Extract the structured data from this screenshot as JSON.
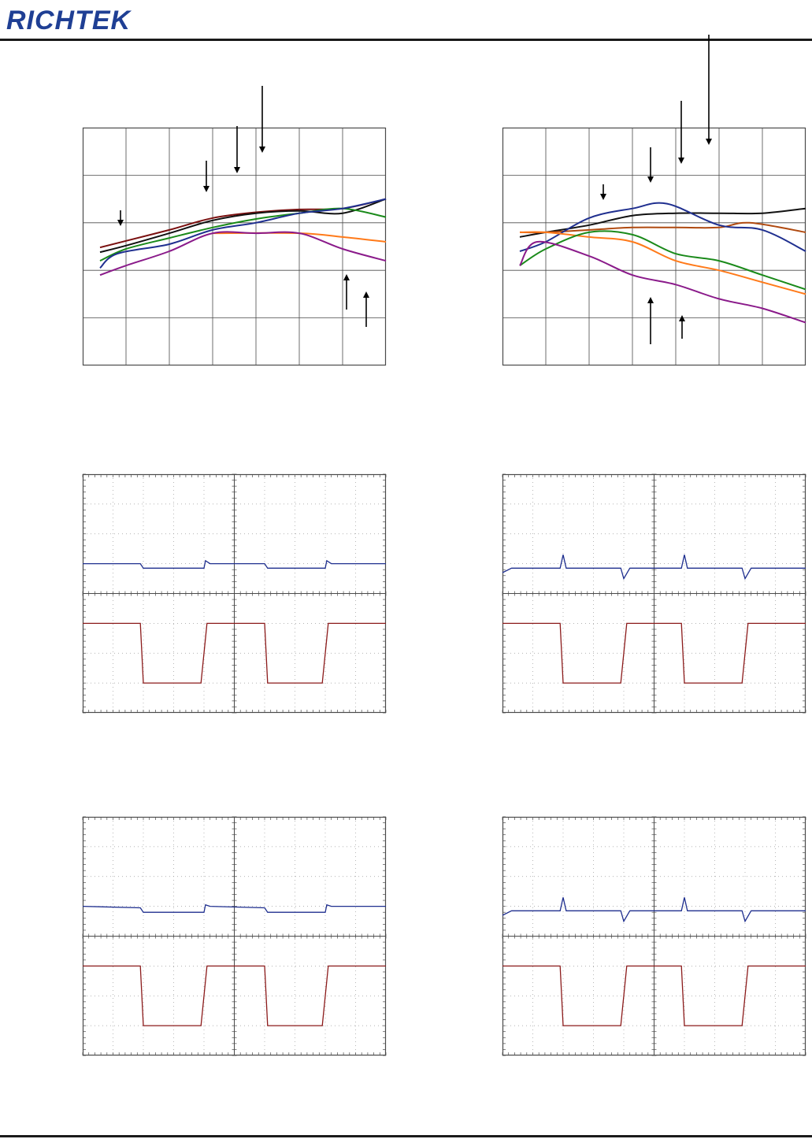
{
  "header": {
    "brand": "RICHTEK"
  },
  "colors": {
    "brand": "#1f3f94",
    "grid": "#4a4a4a",
    "ch_blue": "#1f2f8f",
    "ch_red": "#8b1a1a",
    "orange": "#ff7a1a",
    "green": "#1a8a1a",
    "darkred": "#7a1010",
    "black": "#111111",
    "purple": "#8a1a8a",
    "brown": "#b04a10"
  },
  "chart_data": [
    {
      "type": "line",
      "ylim": [
        0,
        5
      ],
      "xlim": [
        0,
        7
      ],
      "series": [
        {
          "color": "#7a1010",
          "values": [
            [
              0.4,
              2.48
            ],
            [
              1,
              2.62
            ],
            [
              2,
              2.85
            ],
            [
              3,
              3.1
            ],
            [
              4,
              3.22
            ],
            [
              5,
              3.28
            ],
            [
              6,
              3.3
            ],
            [
              7,
              3.5
            ]
          ]
        },
        {
          "color": "#111111",
          "values": [
            [
              0.4,
              2.38
            ],
            [
              1,
              2.52
            ],
            [
              2,
              2.78
            ],
            [
              3,
              3.05
            ],
            [
              4,
              3.2
            ],
            [
              5,
              3.25
            ],
            [
              6,
              3.2
            ],
            [
              7,
              3.5
            ]
          ]
        },
        {
          "color": "#1a8a1a",
          "values": [
            [
              0.4,
              2.2
            ],
            [
              1,
              2.45
            ],
            [
              2,
              2.68
            ],
            [
              3,
              2.9
            ],
            [
              4,
              3.08
            ],
            [
              5,
              3.2
            ],
            [
              6,
              3.3
            ],
            [
              7,
              3.12
            ]
          ]
        },
        {
          "color": "#1f2f8f",
          "values": [
            [
              0.4,
              2.05
            ],
            [
              0.8,
              2.35
            ],
            [
              2,
              2.55
            ],
            [
              3,
              2.85
            ],
            [
              4,
              3.0
            ],
            [
              5,
              3.2
            ],
            [
              6,
              3.3
            ],
            [
              7,
              3.5
            ]
          ]
        },
        {
          "color": "#ff7a1a",
          "values": [
            [
              3,
              2.78
            ],
            [
              5,
              2.78
            ],
            [
              6,
              2.7
            ],
            [
              7,
              2.6
            ]
          ]
        },
        {
          "color": "#8a1a8a",
          "values": [
            [
              0.4,
              1.9
            ],
            [
              1,
              2.1
            ],
            [
              2,
              2.4
            ],
            [
              3,
              2.78
            ],
            [
              4,
              2.78
            ],
            [
              5,
              2.78
            ],
            [
              6,
              2.45
            ],
            [
              7,
              2.2
            ]
          ]
        }
      ]
    },
    {
      "type": "line",
      "ylim": [
        0,
        5
      ],
      "xlim": [
        0,
        7
      ],
      "series": [
        {
          "color": "#111111",
          "values": [
            [
              0.4,
              2.7
            ],
            [
              1,
              2.8
            ],
            [
              2,
              2.95
            ],
            [
              3,
              3.15
            ],
            [
              4,
              3.2
            ],
            [
              5,
              3.2
            ],
            [
              6,
              3.2
            ],
            [
              7,
              3.3
            ]
          ]
        },
        {
          "color": "#b04a10",
          "values": [
            [
              0.4,
              2.8
            ],
            [
              1,
              2.8
            ],
            [
              2,
              2.85
            ],
            [
              3,
              2.9
            ],
            [
              4,
              2.9
            ],
            [
              5,
              2.9
            ],
            [
              5.7,
              3.0
            ],
            [
              7,
              2.8
            ]
          ]
        },
        {
          "color": "#1f2f8f",
          "values": [
            [
              0.4,
              2.4
            ],
            [
              1,
              2.6
            ],
            [
              2,
              3.1
            ],
            [
              3,
              3.3
            ],
            [
              3.8,
              3.4
            ],
            [
              5,
              2.95
            ],
            [
              6,
              2.85
            ],
            [
              7,
              2.4
            ]
          ]
        },
        {
          "color": "#ff7a1a",
          "values": [
            [
              0.4,
              2.8
            ],
            [
              1,
              2.8
            ],
            [
              2,
              2.7
            ],
            [
              3,
              2.6
            ],
            [
              4,
              2.2
            ],
            [
              5,
              2.0
            ],
            [
              6,
              1.75
            ],
            [
              7,
              1.5
            ]
          ]
        },
        {
          "color": "#1a8a1a",
          "values": [
            [
              0.4,
              2.1
            ],
            [
              1,
              2.45
            ],
            [
              2,
              2.8
            ],
            [
              3,
              2.75
            ],
            [
              4,
              2.35
            ],
            [
              5,
              2.2
            ],
            [
              6,
              1.9
            ],
            [
              7,
              1.6
            ]
          ]
        },
        {
          "color": "#8a1a8a",
          "values": [
            [
              0.4,
              2.1
            ],
            [
              0.8,
              2.6
            ],
            [
              2,
              2.3
            ],
            [
              3,
              1.9
            ],
            [
              4,
              1.7
            ],
            [
              5,
              1.4
            ],
            [
              6,
              1.2
            ],
            [
              7,
              0.9
            ]
          ]
        }
      ]
    },
    {
      "type": "line",
      "ylim": [
        0,
        8
      ],
      "xlim": [
        0,
        10
      ],
      "series": [
        {
          "color": "#1f2f8f",
          "values": [
            [
              0,
              5.0
            ],
            [
              1.9,
              5.0
            ],
            [
              2,
              4.85
            ],
            [
              4,
              4.85
            ],
            [
              4.05,
              5.1
            ],
            [
              4.2,
              5.0
            ],
            [
              6,
              5.0
            ],
            [
              6.1,
              4.85
            ],
            [
              8,
              4.85
            ],
            [
              8.05,
              5.1
            ],
            [
              8.2,
              5.0
            ],
            [
              10,
              5.0
            ]
          ]
        },
        {
          "color": "#8b1a1a",
          "values": [
            [
              0,
              3.0
            ],
            [
              1.9,
              3.0
            ],
            [
              2.0,
              1.0
            ],
            [
              3.9,
              1.0
            ],
            [
              4.1,
              3.0
            ],
            [
              6,
              3.0
            ],
            [
              6.1,
              1.0
            ],
            [
              7.9,
              1.0
            ],
            [
              8.1,
              3.0
            ],
            [
              10,
              3.0
            ]
          ]
        }
      ]
    },
    {
      "type": "line",
      "ylim": [
        0,
        8
      ],
      "xlim": [
        0,
        10
      ],
      "series": [
        {
          "color": "#1f2f8f",
          "values": [
            [
              0,
              4.7
            ],
            [
              0.3,
              4.85
            ],
            [
              1.9,
              4.85
            ],
            [
              2.0,
              5.3
            ],
            [
              2.1,
              4.85
            ],
            [
              3.9,
              4.85
            ],
            [
              4.0,
              4.5
            ],
            [
              4.2,
              4.85
            ],
            [
              5.9,
              4.85
            ],
            [
              6.0,
              5.3
            ],
            [
              6.1,
              4.85
            ],
            [
              7.9,
              4.85
            ],
            [
              8.0,
              4.5
            ],
            [
              8.2,
              4.85
            ],
            [
              10,
              4.85
            ]
          ]
        },
        {
          "color": "#8b1a1a",
          "values": [
            [
              0,
              3.0
            ],
            [
              1.9,
              3.0
            ],
            [
              2.0,
              1.0
            ],
            [
              3.9,
              1.0
            ],
            [
              4.1,
              3.0
            ],
            [
              5.9,
              3.0
            ],
            [
              6.0,
              1.0
            ],
            [
              7.9,
              1.0
            ],
            [
              8.1,
              3.0
            ],
            [
              10,
              3.0
            ]
          ]
        }
      ]
    },
    {
      "type": "line",
      "ylim": [
        0,
        8
      ],
      "xlim": [
        0,
        10
      ],
      "series": [
        {
          "color": "#1f2f8f",
          "values": [
            [
              0,
              5.0
            ],
            [
              1.9,
              4.95
            ],
            [
              2,
              4.8
            ],
            [
              4,
              4.8
            ],
            [
              4.05,
              5.05
            ],
            [
              4.2,
              5.0
            ],
            [
              6,
              4.95
            ],
            [
              6.1,
              4.8
            ],
            [
              8,
              4.8
            ],
            [
              8.05,
              5.05
            ],
            [
              8.2,
              5.0
            ],
            [
              10,
              5.0
            ]
          ]
        },
        {
          "color": "#8b1a1a",
          "values": [
            [
              0,
              3.0
            ],
            [
              1.9,
              3.0
            ],
            [
              2.0,
              1.0
            ],
            [
              3.9,
              1.0
            ],
            [
              4.1,
              3.0
            ],
            [
              6,
              3.0
            ],
            [
              6.1,
              1.0
            ],
            [
              7.9,
              1.0
            ],
            [
              8.1,
              3.0
            ],
            [
              10,
              3.0
            ]
          ]
        }
      ]
    },
    {
      "type": "line",
      "ylim": [
        0,
        8
      ],
      "xlim": [
        0,
        10
      ],
      "series": [
        {
          "color": "#1f2f8f",
          "values": [
            [
              0,
              4.7
            ],
            [
              0.3,
              4.85
            ],
            [
              1.9,
              4.85
            ],
            [
              2.0,
              5.3
            ],
            [
              2.1,
              4.85
            ],
            [
              3.9,
              4.85
            ],
            [
              4.0,
              4.5
            ],
            [
              4.2,
              4.85
            ],
            [
              5.9,
              4.85
            ],
            [
              6.0,
              5.3
            ],
            [
              6.1,
              4.85
            ],
            [
              7.9,
              4.85
            ],
            [
              8.0,
              4.5
            ],
            [
              8.2,
              4.85
            ],
            [
              10,
              4.85
            ]
          ]
        },
        {
          "color": "#8b1a1a",
          "values": [
            [
              0,
              3.0
            ],
            [
              1.9,
              3.0
            ],
            [
              2.0,
              1.0
            ],
            [
              3.9,
              1.0
            ],
            [
              4.1,
              3.0
            ],
            [
              5.9,
              3.0
            ],
            [
              6.0,
              1.0
            ],
            [
              7.9,
              1.0
            ],
            [
              8.1,
              3.0
            ],
            [
              10,
              3.0
            ]
          ]
        }
      ]
    }
  ]
}
